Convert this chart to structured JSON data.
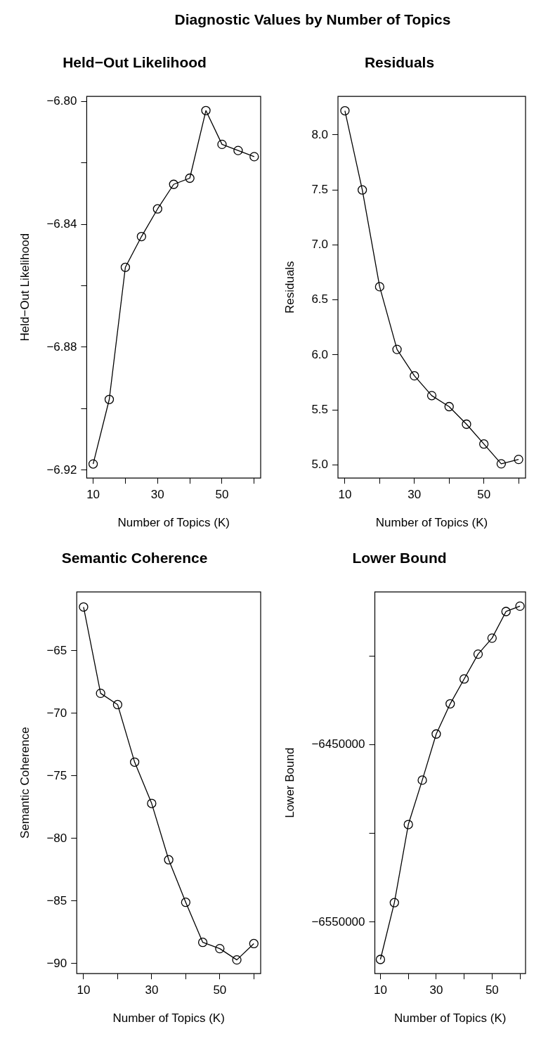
{
  "chart_data": [
    {
      "type": "other",
      "title": "Diagnostic Values by Number of Topics"
    },
    {
      "type": "line",
      "title": "Held−Out Likelihood",
      "xlabel": "Number of Topics (K)",
      "ylabel": "Held−Out Likelihood",
      "color": "#000000",
      "marker": "circle",
      "x": [
        10,
        15,
        20,
        25,
        30,
        35,
        40,
        45,
        50,
        55,
        60
      ],
      "values": [
        -6.918,
        -6.897,
        -6.854,
        -6.844,
        -6.835,
        -6.827,
        -6.825,
        -6.803,
        -6.814,
        -6.816,
        -6.818
      ],
      "xlim": [
        8,
        62
      ],
      "xticks": [
        10,
        {
          "value": 20,
          "label": null
        },
        30,
        {
          "value": 40,
          "label": null
        },
        50,
        {
          "value": 60,
          "label": null
        }
      ],
      "ylim": [
        -6.9226,
        -6.7984
      ],
      "yticks": [
        {
          "value": -6.92,
          "label": "−6.92"
        },
        {
          "value": -6.9,
          "label": null
        },
        {
          "value": -6.88,
          "label": "−6.88"
        },
        {
          "value": -6.86,
          "label": null
        },
        {
          "value": -6.84,
          "label": "−6.84"
        },
        {
          "value": -6.82,
          "label": null
        },
        {
          "value": -6.8,
          "label": "−6.80"
        }
      ]
    },
    {
      "type": "line",
      "title": "Residuals",
      "xlabel": "Number of Topics (K)",
      "ylabel": "Residuals",
      "color": "#000000",
      "marker": "circle",
      "x": [
        10,
        15,
        20,
        25,
        30,
        35,
        40,
        45,
        50,
        55,
        60
      ],
      "values": [
        8.22,
        7.5,
        6.62,
        6.05,
        5.81,
        5.63,
        5.53,
        5.37,
        5.19,
        5.01,
        5.05
      ],
      "xlim": [
        8,
        62
      ],
      "xticks": [
        10,
        {
          "value": 20,
          "label": null
        },
        30,
        {
          "value": 40,
          "label": null
        },
        50,
        {
          "value": 60,
          "label": null
        }
      ],
      "ylim": [
        4.88,
        8.35
      ],
      "yticks": [
        {
          "value": 5,
          "label": "5.0"
        },
        5.5,
        {
          "value": 6,
          "label": "6.0"
        },
        6.5,
        {
          "value": 7,
          "label": "7.0"
        },
        7.5,
        {
          "value": 8,
          "label": "8.0"
        }
      ]
    },
    {
      "type": "line",
      "title": "Semantic Coherence",
      "xlabel": "Number of Topics (K)",
      "ylabel": "Semantic Coherence",
      "color": "#000000",
      "marker": "circle",
      "x": [
        10,
        15,
        20,
        25,
        30,
        35,
        40,
        45,
        50,
        55,
        60
      ],
      "values": [
        -61.5,
        -68.4,
        -69.3,
        -73.9,
        -77.2,
        -81.7,
        -85.1,
        -88.3,
        -88.8,
        -89.7,
        -88.4
      ],
      "xlim": [
        8,
        62
      ],
      "xticks": [
        10,
        {
          "value": 20,
          "label": null
        },
        30,
        {
          "value": 40,
          "label": null
        },
        50,
        {
          "value": 60,
          "label": null
        }
      ],
      "ylim": [
        -90.8,
        -60.3
      ],
      "yticks": [
        {
          "value": -90,
          "label": "−90"
        },
        {
          "value": -85,
          "label": "−85"
        },
        {
          "value": -80,
          "label": "−80"
        },
        {
          "value": -75,
          "label": "−75"
        },
        {
          "value": -70,
          "label": "−70"
        },
        {
          "value": -65,
          "label": "−65"
        }
      ]
    },
    {
      "type": "line",
      "title": "Lower Bound",
      "xlabel": "Number of Topics (K)",
      "ylabel": "Lower Bound",
      "color": "#000000",
      "marker": "circle",
      "x": [
        10,
        15,
        20,
        25,
        30,
        35,
        40,
        45,
        50,
        55,
        60
      ],
      "values": [
        -6571000,
        -6539000,
        -6495000,
        -6470000,
        -6444000,
        -6427000,
        -6413000,
        -6399000,
        -6390000,
        -6375000,
        -6372000
      ],
      "xlim": [
        8,
        62
      ],
      "xticks": [
        10,
        {
          "value": 20,
          "label": null
        },
        30,
        {
          "value": 40,
          "label": null
        },
        50,
        {
          "value": 60,
          "label": null
        }
      ],
      "ylim": [
        -6579000,
        -6364000
      ],
      "yticks": [
        {
          "value": -6550000,
          "label": "−6550000"
        },
        {
          "value": -6500000,
          "label": null
        },
        {
          "value": -6450000,
          "label": "−6450000"
        },
        {
          "value": -6400000,
          "label": null
        }
      ]
    }
  ]
}
